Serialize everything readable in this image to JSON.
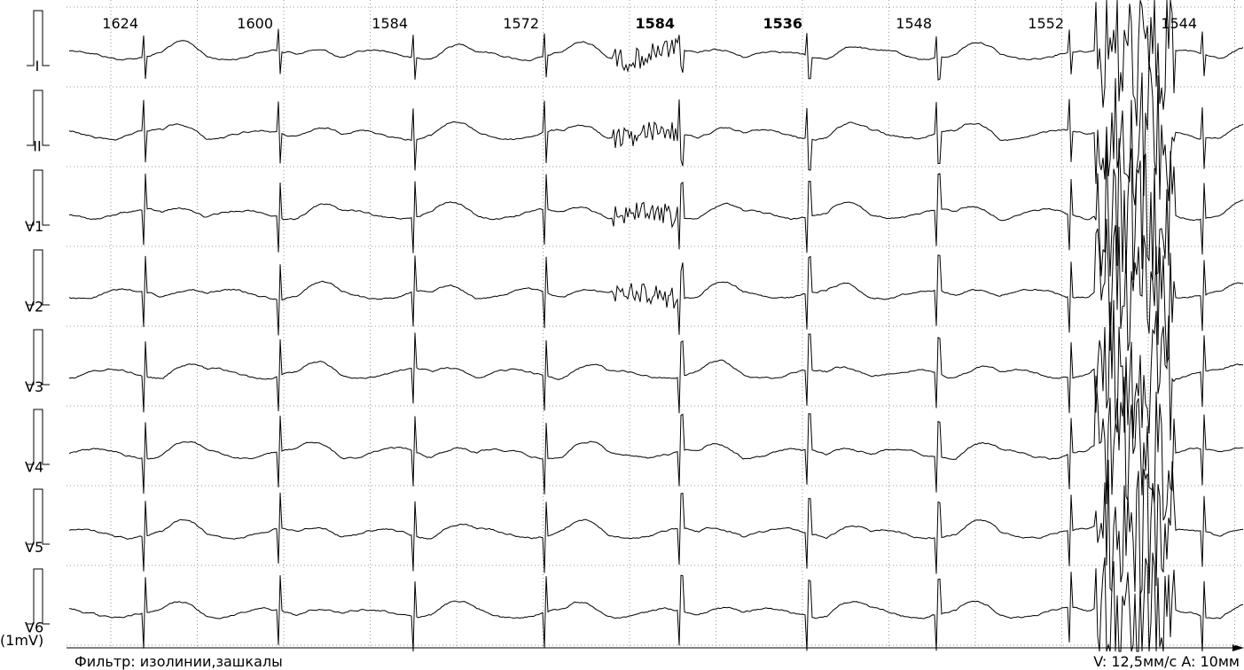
{
  "leads": [
    "I",
    "II",
    "V1",
    "V2",
    "V3",
    "V4",
    "V5",
    "V6"
  ],
  "calibration": "(1mV)",
  "rr_intervals": [
    {
      "value": 1624,
      "bold": false
    },
    {
      "value": 1600,
      "bold": false
    },
    {
      "value": 1584,
      "bold": false
    },
    {
      "value": 1572,
      "bold": false
    },
    {
      "value": 1584,
      "bold": true
    },
    {
      "value": 1536,
      "bold": true
    },
    {
      "value": 1548,
      "bold": false
    },
    {
      "value": 1552,
      "bold": false
    },
    {
      "value": 1544,
      "bold": false
    }
  ],
  "footer": {
    "filter": "Фильтр: изолинии,зашкалы",
    "scale": "V: 12,5мм/с  A: 10мм"
  }
}
